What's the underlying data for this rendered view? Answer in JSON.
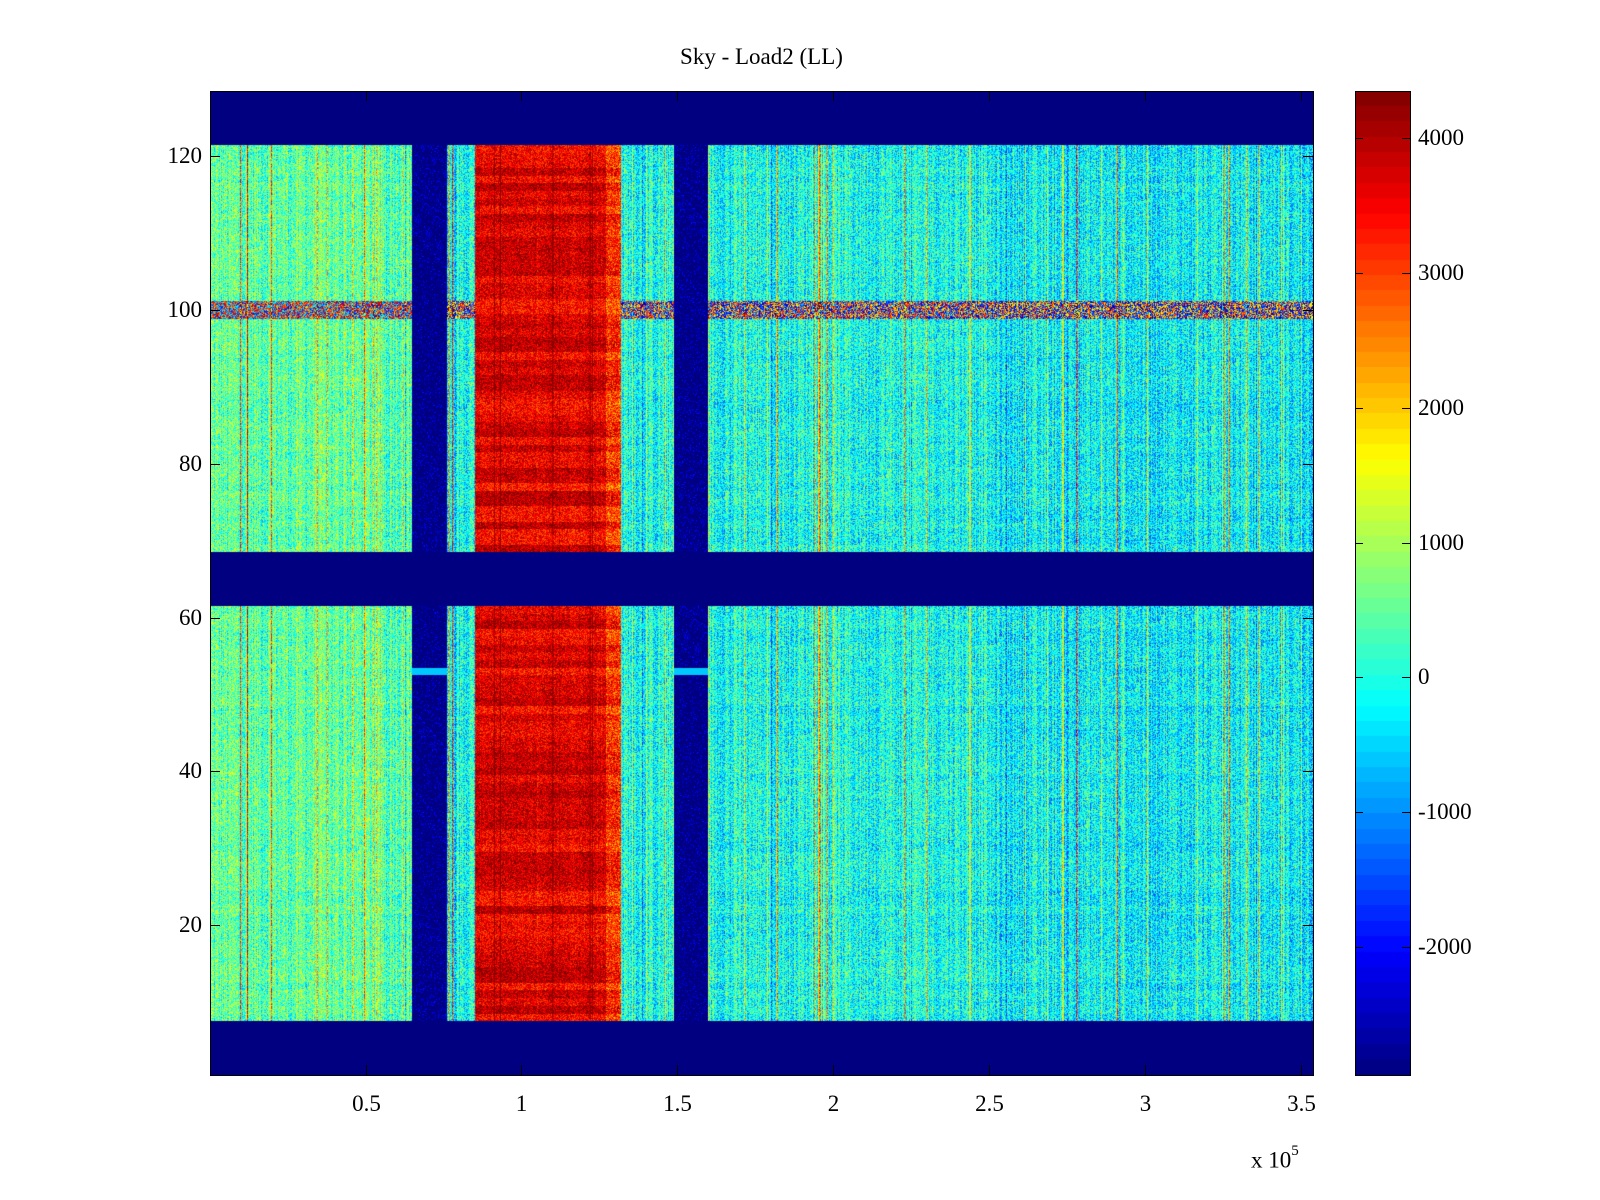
{
  "chart_data": {
    "type": "heatmap",
    "title": "Sky - Load2 (LL)",
    "x_range": [
      100,
      354000
    ],
    "y_range": [
      0.5,
      128.5
    ],
    "x_ticks": [
      {
        "value": 50000,
        "label": "0.5"
      },
      {
        "value": 100000,
        "label": "1"
      },
      {
        "value": 150000,
        "label": "1.5"
      },
      {
        "value": 200000,
        "label": "2"
      },
      {
        "value": 250000,
        "label": "2.5"
      },
      {
        "value": 300000,
        "label": "3"
      },
      {
        "value": 350000,
        "label": "3.5"
      }
    ],
    "x_multiplier": {
      "base": "x 10",
      "exponent": "5"
    },
    "y_ticks": [
      20,
      40,
      60,
      80,
      100,
      120
    ],
    "colorbar": {
      "colormap": "jet",
      "range": [
        -2950,
        4350
      ],
      "ticks": [
        -2000,
        -1000,
        0,
        1000,
        2000,
        3000,
        4000
      ]
    },
    "masked_rows": [
      [
        0.5,
        7.5
      ],
      [
        61.5,
        68.5
      ],
      [
        121.5,
        128.5
      ]
    ],
    "masked_column_bands": [
      [
        65000,
        76000
      ],
      [
        149000,
        160000
      ]
    ],
    "elevated_band": {
      "x": [
        85000,
        132000
      ],
      "value_range": [
        3000,
        4300
      ]
    },
    "background_value_range": [
      -1200,
      1500
    ],
    "row_stripe": {
      "y": 100,
      "description": "mixed high/low"
    },
    "mask_value": -2950
  }
}
